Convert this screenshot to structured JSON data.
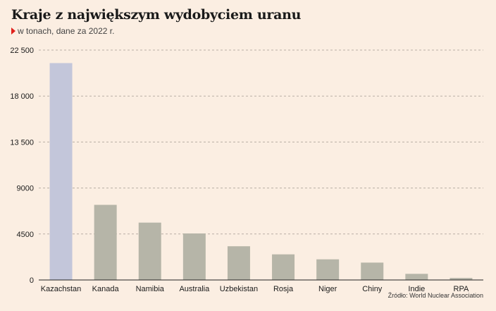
{
  "header": {
    "title": "Kraje z największym wydobyciem uranu",
    "subtitle": "w tonach, dane za 2022 r."
  },
  "source": "Źródło: World Nuclear Association",
  "colors": {
    "background": "#fbeee2",
    "highlight_bar": "#c3c6da",
    "bar": "#b6b5a8",
    "grid": "#b9aea5",
    "marker": "#e0201b"
  },
  "chart_data": {
    "type": "bar",
    "title": "Kraje z największym wydobyciem uranu",
    "subtitle": "w tonach, dane za 2022 r.",
    "xlabel": "",
    "ylabel": "",
    "ylim": [
      0,
      22500
    ],
    "yticks": [
      0,
      4500,
      9000,
      13500,
      18000,
      22500
    ],
    "ytick_labels": [
      "0",
      "4500",
      "9000",
      "13 500",
      "18 000",
      "22 500"
    ],
    "grid": true,
    "categories": [
      "Kazachstan",
      "Kanada",
      "Namibia",
      "Australia",
      "Uzbekistan",
      "Rosja",
      "Niger",
      "Chiny",
      "Indie",
      "RPA"
    ],
    "values": [
      21227,
      7351,
      5613,
      4553,
      3300,
      2508,
      2020,
      1700,
      600,
      200
    ],
    "highlight_index": 0
  }
}
